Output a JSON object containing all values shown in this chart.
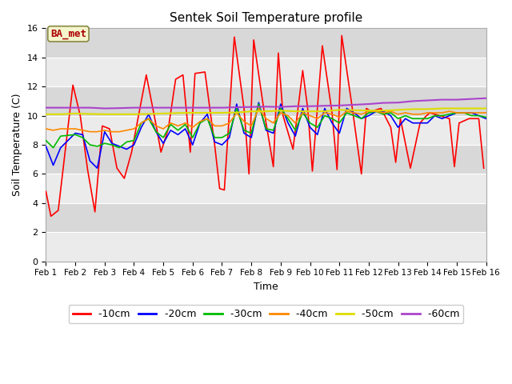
{
  "title": "Sentek Soil Temperature profile",
  "xlabel": "Time",
  "ylabel": "Soil Temperature (C)",
  "xlim": [
    0,
    15
  ],
  "ylim": [
    0,
    16
  ],
  "yticks": [
    0,
    2,
    4,
    6,
    8,
    10,
    12,
    14,
    16
  ],
  "xtick_labels": [
    "Feb 1",
    "Feb 2",
    "Feb 3",
    "Feb 4",
    "Feb 5",
    "Feb 6",
    "Feb 7",
    "Feb 8",
    "Feb 9",
    "Feb 10",
    "Feb 11",
    "Feb 12",
    "Feb 13",
    "Feb 14",
    "Feb 15",
    "Feb 16"
  ],
  "plot_bg_light": "#ebebeb",
  "plot_bg_dark": "#d8d8d8",
  "fig_bg": "#ffffff",
  "annotation_text": "BA_met",
  "annotation_color": "#aa0000",
  "annotation_bg": "#f5f5cc",
  "annotation_edge": "#888844",
  "series": {
    "-10cm": {
      "color": "#ff0000",
      "lw": 1.2,
      "x": [
        0.0,
        0.17,
        0.42,
        0.92,
        1.17,
        1.42,
        1.67,
        1.92,
        2.17,
        2.42,
        2.67,
        2.92,
        3.08,
        3.42,
        3.75,
        3.92,
        4.17,
        4.42,
        4.67,
        4.92,
        5.08,
        5.42,
        5.75,
        5.92,
        6.08,
        6.42,
        6.75,
        6.92,
        7.08,
        7.42,
        7.75,
        7.92,
        8.08,
        8.42,
        8.75,
        8.92,
        9.08,
        9.42,
        9.75,
        9.92,
        10.08,
        10.42,
        10.75,
        10.92,
        11.08,
        11.42,
        11.75,
        11.92,
        12.08,
        12.42,
        12.75,
        12.92,
        13.08,
        13.42,
        13.75,
        13.92,
        14.08,
        14.42,
        14.75,
        14.92
      ],
      "y": [
        4.8,
        3.1,
        3.5,
        12.1,
        10.0,
        6.3,
        3.4,
        9.3,
        9.1,
        6.4,
        5.7,
        7.5,
        9.2,
        12.8,
        9.4,
        7.5,
        9.1,
        12.5,
        12.8,
        7.5,
        12.9,
        13.0,
        8.0,
        5.0,
        4.9,
        15.4,
        10.5,
        6.0,
        15.2,
        10.5,
        6.5,
        14.3,
        10.0,
        7.7,
        13.1,
        10.5,
        6.2,
        14.8,
        10.2,
        6.3,
        15.5,
        10.8,
        6.0,
        10.5,
        10.3,
        10.5,
        9.2,
        6.8,
        9.8,
        6.4,
        9.5,
        9.9,
        10.2,
        10.0,
        9.8,
        6.5,
        9.5,
        9.8,
        9.8,
        6.4
      ]
    },
    "-20cm": {
      "color": "#0000ff",
      "lw": 1.2,
      "x": [
        0.0,
        0.25,
        0.5,
        1.0,
        1.25,
        1.5,
        1.75,
        2.0,
        2.25,
        2.5,
        2.75,
        3.0,
        3.25,
        3.5,
        3.75,
        4.0,
        4.25,
        4.5,
        4.75,
        5.0,
        5.25,
        5.5,
        5.75,
        6.0,
        6.25,
        6.5,
        6.75,
        7.0,
        7.25,
        7.5,
        7.75,
        8.0,
        8.25,
        8.5,
        8.75,
        9.0,
        9.25,
        9.5,
        9.75,
        10.0,
        10.25,
        10.5,
        10.75,
        11.0,
        11.25,
        11.5,
        11.75,
        12.0,
        12.25,
        12.5,
        12.75,
        13.0,
        13.25,
        13.5,
        13.75,
        14.0,
        14.25,
        14.5,
        14.75,
        15.0
      ],
      "y": [
        7.9,
        6.6,
        7.8,
        8.8,
        8.7,
        6.9,
        6.4,
        8.9,
        8.1,
        7.9,
        7.7,
        8.0,
        9.2,
        10.1,
        8.9,
        8.1,
        9.0,
        8.7,
        9.1,
        8.0,
        9.5,
        10.1,
        8.2,
        8.0,
        8.5,
        10.8,
        8.8,
        8.5,
        10.9,
        9.0,
        8.8,
        10.8,
        9.5,
        8.6,
        10.5,
        9.2,
        8.7,
        10.5,
        9.5,
        8.8,
        10.5,
        10.2,
        9.8,
        10.0,
        10.3,
        10.3,
        10.0,
        9.2,
        9.8,
        9.5,
        9.5,
        9.5,
        10.0,
        9.8,
        10.0,
        10.2,
        10.2,
        10.2,
        10.0,
        9.8
      ]
    },
    "-30cm": {
      "color": "#00bb00",
      "lw": 1.2,
      "x": [
        0.0,
        0.25,
        0.5,
        1.0,
        1.25,
        1.5,
        1.75,
        2.0,
        2.25,
        2.5,
        2.75,
        3.0,
        3.25,
        3.5,
        3.75,
        4.0,
        4.25,
        4.5,
        4.75,
        5.0,
        5.25,
        5.5,
        5.75,
        6.0,
        6.25,
        6.5,
        6.75,
        7.0,
        7.25,
        7.5,
        7.75,
        8.0,
        8.25,
        8.5,
        8.75,
        9.0,
        9.25,
        9.5,
        9.75,
        10.0,
        10.25,
        10.5,
        10.75,
        11.0,
        11.25,
        11.5,
        11.75,
        12.0,
        12.25,
        12.5,
        12.75,
        13.0,
        13.25,
        13.5,
        13.75,
        14.0,
        14.25,
        14.5,
        14.75,
        15.0
      ],
      "y": [
        8.3,
        7.8,
        8.6,
        8.7,
        8.5,
        8.0,
        7.9,
        8.1,
        8.0,
        7.8,
        8.2,
        8.3,
        9.5,
        9.8,
        8.9,
        8.5,
        9.4,
        9.0,
        9.4,
        8.5,
        9.5,
        9.8,
        8.5,
        8.5,
        8.8,
        10.5,
        9.0,
        8.8,
        10.8,
        9.1,
        9.0,
        10.5,
        9.8,
        9.0,
        10.2,
        9.5,
        9.2,
        10.0,
        9.8,
        9.5,
        10.2,
        10.0,
        9.8,
        10.2,
        10.3,
        10.1,
        10.2,
        9.8,
        10.0,
        9.8,
        9.8,
        9.8,
        10.0,
        10.0,
        10.1,
        10.2,
        10.2,
        10.0,
        10.0,
        9.9
      ]
    },
    "-40cm": {
      "color": "#ff8800",
      "lw": 1.2,
      "x": [
        0.0,
        0.25,
        0.5,
        1.0,
        1.25,
        1.5,
        1.75,
        2.0,
        2.25,
        2.5,
        2.75,
        3.0,
        3.25,
        3.5,
        3.75,
        4.0,
        4.25,
        4.5,
        4.75,
        5.0,
        5.25,
        5.5,
        5.75,
        6.0,
        6.25,
        6.5,
        6.75,
        7.0,
        7.25,
        7.5,
        7.75,
        8.0,
        8.25,
        8.5,
        8.75,
        9.0,
        9.25,
        9.5,
        9.75,
        10.0,
        10.25,
        10.5,
        10.75,
        11.0,
        11.25,
        11.5,
        11.75,
        12.0,
        12.25,
        12.5,
        12.75,
        13.0,
        13.25,
        13.5,
        13.75,
        14.0,
        14.25,
        14.5,
        14.75,
        15.0
      ],
      "y": [
        9.1,
        9.0,
        9.1,
        9.1,
        9.0,
        8.9,
        8.9,
        9.0,
        8.9,
        8.9,
        9.0,
        9.1,
        9.5,
        9.8,
        9.3,
        9.1,
        9.5,
        9.3,
        9.5,
        9.2,
        9.6,
        9.8,
        9.3,
        9.3,
        9.5,
        10.2,
        9.6,
        9.3,
        10.5,
        9.8,
        9.5,
        10.2,
        10.0,
        9.5,
        10.2,
        10.0,
        9.8,
        10.2,
        10.1,
        9.9,
        10.3,
        10.2,
        10.1,
        10.3,
        10.3,
        10.2,
        10.3,
        10.1,
        10.2,
        10.1,
        10.1,
        10.2,
        10.2,
        10.2,
        10.3,
        10.2,
        10.2,
        10.2,
        10.2,
        10.2
      ]
    },
    "-50cm": {
      "color": "#dddd00",
      "lw": 1.5,
      "x": [
        0.0,
        0.5,
        1.0,
        1.5,
        2.0,
        2.5,
        3.0,
        3.5,
        4.0,
        4.5,
        5.0,
        5.5,
        6.0,
        6.5,
        7.0,
        7.5,
        8.0,
        8.5,
        9.0,
        9.5,
        10.0,
        10.5,
        11.0,
        11.5,
        12.0,
        12.5,
        13.0,
        13.5,
        14.0,
        14.5,
        15.0
      ],
      "y": [
        10.1,
        10.1,
        10.15,
        10.12,
        10.1,
        10.1,
        10.1,
        10.12,
        10.15,
        10.18,
        10.2,
        10.2,
        10.2,
        10.22,
        10.3,
        10.3,
        10.35,
        10.3,
        10.3,
        10.3,
        10.4,
        10.38,
        10.35,
        10.35,
        10.4,
        10.45,
        10.45,
        10.5,
        10.5,
        10.5,
        10.5
      ]
    },
    "-60cm": {
      "color": "#aa44cc",
      "lw": 1.5,
      "x": [
        0.0,
        0.5,
        1.0,
        1.5,
        2.0,
        2.5,
        3.0,
        3.5,
        4.0,
        4.5,
        5.0,
        5.5,
        6.0,
        6.5,
        7.0,
        7.5,
        8.0,
        8.5,
        9.0,
        9.5,
        10.0,
        10.5,
        11.0,
        11.5,
        12.0,
        12.5,
        13.0,
        13.5,
        14.0,
        14.5,
        15.0
      ],
      "y": [
        10.55,
        10.55,
        10.55,
        10.55,
        10.5,
        10.52,
        10.55,
        10.55,
        10.55,
        10.55,
        10.55,
        10.55,
        10.55,
        10.58,
        10.6,
        10.62,
        10.6,
        10.65,
        10.65,
        10.68,
        10.7,
        10.75,
        10.8,
        10.88,
        10.9,
        11.0,
        11.05,
        11.1,
        11.1,
        11.15,
        11.2
      ]
    }
  }
}
